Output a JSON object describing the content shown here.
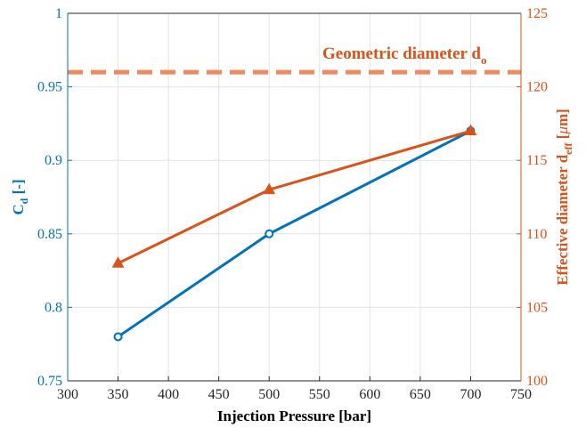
{
  "chart_data": {
    "type": "line",
    "title": "",
    "xlabel": "Injection Pressure [bar]",
    "xlim": [
      300,
      750
    ],
    "xticks": [
      "300",
      "350",
      "400",
      "450",
      "500",
      "550",
      "600",
      "650",
      "700",
      "750"
    ],
    "grid": true,
    "y_left": {
      "label_main": "C",
      "label_sub": "d",
      "label_tail": " [-]",
      "ylim": [
        0.75,
        1
      ],
      "ticks": [
        "0.75",
        "0.8",
        "0.85",
        "0.9",
        "0.95",
        "1"
      ],
      "color": "#0072BD"
    },
    "y_right": {
      "label_main": "Effective diameter d",
      "label_sub": "eff",
      "label_open": " [",
      "label_mu": "μ",
      "label_close": "m]",
      "ylim": [
        100,
        125
      ],
      "ticks": [
        "100",
        "105",
        "110",
        "115",
        "120",
        "125"
      ],
      "color": "#D95319"
    },
    "x": [
      350,
      500,
      700
    ],
    "series": [
      {
        "axis": "left",
        "marker": "circle",
        "color": "#0072BD",
        "values": [
          0.78,
          0.85,
          0.92
        ]
      },
      {
        "axis": "right",
        "marker": "triangle",
        "color": "#D95319",
        "values": [
          108,
          113,
          117
        ]
      }
    ],
    "reference_line": {
      "axis": "right",
      "value": 121,
      "style": "dashed",
      "color": "#EE8A5E",
      "label_main": "Geometric diameter d",
      "label_sub": "o"
    }
  }
}
